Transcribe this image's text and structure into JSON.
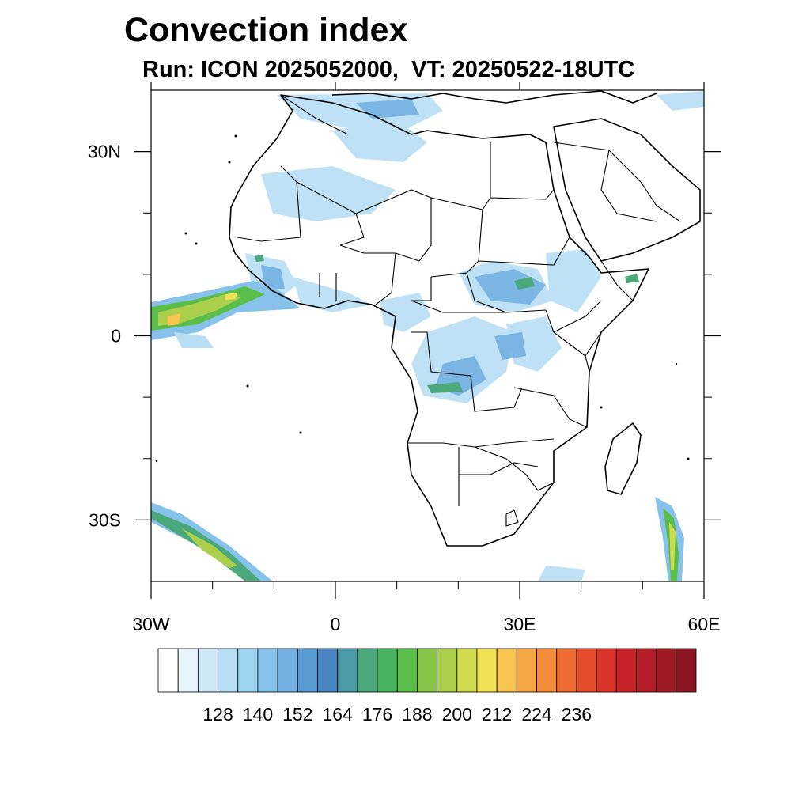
{
  "title": "Convection index",
  "subtitle": "Run: ICON 2025052000,  VT: 20250522-18UTC",
  "map": {
    "lon_range": [
      -30,
      60
    ],
    "lat_range": [
      -40,
      40
    ],
    "lon_labels": [
      {
        "lon": -30,
        "text": "30W"
      },
      {
        "lon": 0,
        "text": "0"
      },
      {
        "lon": 30,
        "text": "30E"
      },
      {
        "lon": 60,
        "text": "60E"
      }
    ],
    "lat_labels": [
      {
        "lat": 30,
        "text": "30N"
      },
      {
        "lat": 0,
        "text": "0"
      },
      {
        "lat": -30,
        "text": "30S"
      }
    ],
    "minor_lon_ticks": [
      -20,
      -10,
      10,
      20,
      40,
      50
    ],
    "minor_lat_ticks": [
      20,
      10,
      -10,
      -20
    ]
  },
  "colorbar": {
    "colors": [
      "#ffffff",
      "#e8f4fc",
      "#cfe8f7",
      "#b7def5",
      "#9fd5f3",
      "#86c2ea",
      "#74b1e2",
      "#5a9ad3",
      "#4a85c0",
      "#4a9aa8",
      "#4aa87a",
      "#47b35e",
      "#5bbd4a",
      "#86c548",
      "#abcf4a",
      "#d0da4e",
      "#f0e254",
      "#f6c44f",
      "#f6a745",
      "#f38b3b",
      "#ee6b32",
      "#e54c2c",
      "#d93228",
      "#c9232a",
      "#b41d28",
      "#a01a24",
      "#8a1520"
    ],
    "tick_labels": [
      "128",
      "140",
      "152",
      "164",
      "176",
      "188",
      "200",
      "212",
      "224",
      "236"
    ]
  }
}
